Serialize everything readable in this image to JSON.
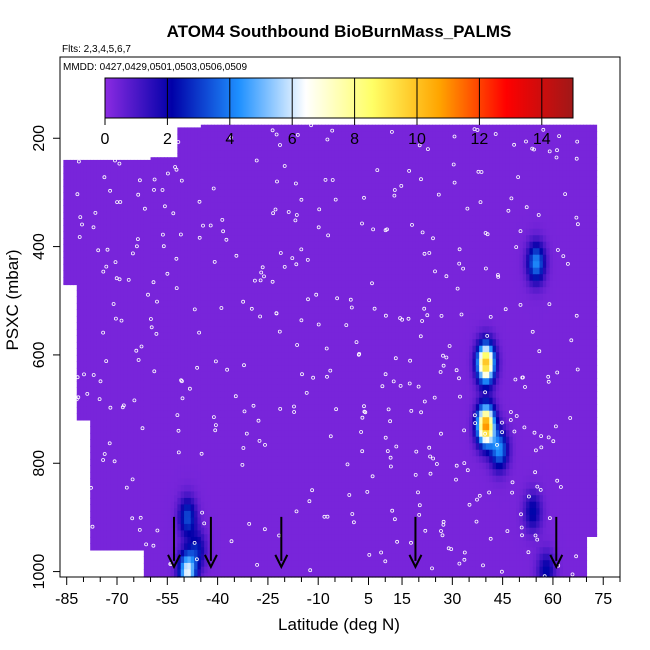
{
  "chart_data": {
    "type": "heatmap",
    "title": "ATOM4 Southbound BioBurnMass_PALMS",
    "subtitle_flights": "Flts: 2,3,4,5,6,7",
    "subtitle_dates": "MMDD: 0427,0429,0501,0503,0506,0509",
    "xlabel": "Latitude (deg N)",
    "ylabel": "PSXC (mbar)",
    "xlim": [
      -87,
      80
    ],
    "ylim": [
      1010,
      50
    ],
    "y_reversed": true,
    "x_ticks": [
      -85,
      -70,
      -55,
      -40,
      -25,
      -10,
      5,
      15,
      30,
      45,
      60,
      75
    ],
    "x_tick_labels": [
      "-85",
      "-70",
      "-55",
      "-40",
      "-25",
      "-10",
      "5",
      "15",
      "30",
      "45",
      "60",
      "75"
    ],
    "y_ticks": [
      200,
      400,
      600,
      800,
      1000
    ],
    "y_tick_labels": [
      "200",
      "400",
      "600",
      "800",
      "1000"
    ],
    "colorbar": {
      "range": [
        0,
        15
      ],
      "ticks": [
        0,
        2,
        4,
        6,
        8,
        10,
        12,
        14
      ],
      "tick_labels": [
        "0",
        "2",
        "4",
        "6",
        "8",
        "10",
        "12",
        "14"
      ],
      "colors": [
        "#8b2be2",
        "#0000a8",
        "#1e90ff",
        "#ffffff",
        "#ffff66",
        "#ffa500",
        "#ff0000",
        "#a01818"
      ]
    },
    "background_value": 0.3,
    "plumes": [
      {
        "lat": -49,
        "p": 1000,
        "value": 6
      },
      {
        "lat": -49,
        "p": 900,
        "value": 3
      },
      {
        "lat": -46,
        "p": 960,
        "value": 2
      },
      {
        "lat": 40,
        "p": 615,
        "value": 10
      },
      {
        "lat": 40,
        "p": 730,
        "value": 11
      },
      {
        "lat": 44,
        "p": 775,
        "value": 4
      },
      {
        "lat": 55,
        "p": 430,
        "value": 4
      },
      {
        "lat": 54,
        "p": 890,
        "value": 2
      },
      {
        "lat": 58,
        "p": 1000,
        "value": 2
      }
    ],
    "arrow_latitudes": [
      -53,
      -42,
      -21,
      19,
      61
    ]
  }
}
